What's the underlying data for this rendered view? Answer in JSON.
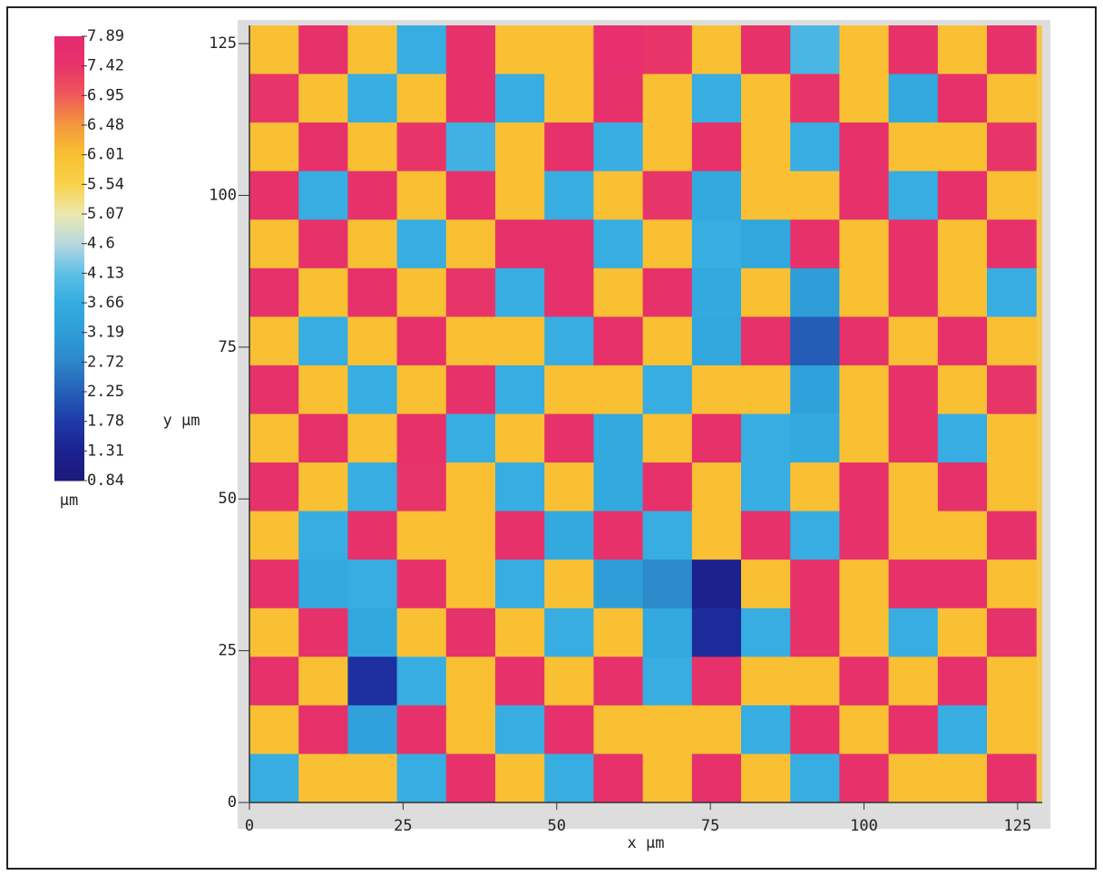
{
  "chart_data": {
    "type": "heatmap",
    "x_label": "x µm",
    "y_label": "y µm",
    "colorbar_unit": "µm",
    "xlim": [
      0,
      129
    ],
    "ylim": [
      0,
      128
    ],
    "xticks": [
      0,
      25,
      50,
      75,
      100,
      125
    ],
    "yticks": [
      0,
      25,
      50,
      75,
      100,
      125
    ],
    "x": [
      4,
      12,
      20,
      28,
      36,
      44,
      52,
      60,
      68,
      76,
      84,
      92,
      100,
      108,
      116,
      124
    ],
    "y": [
      124,
      116,
      108,
      100,
      92,
      84,
      76,
      68,
      60,
      52,
      44,
      36,
      28,
      20,
      12,
      4
    ],
    "z": [
      [
        6.0,
        7.5,
        6.0,
        3.7,
        7.5,
        6.0,
        6.0,
        7.6,
        7.4,
        6.0,
        7.5,
        3.9,
        6.0,
        7.5,
        6.0,
        7.5
      ],
      [
        7.4,
        6.0,
        3.7,
        6.0,
        7.5,
        3.7,
        6.0,
        7.5,
        6.0,
        3.7,
        6.0,
        7.4,
        6.0,
        3.6,
        7.5,
        6.0
      ],
      [
        6.0,
        7.5,
        6.0,
        7.4,
        3.8,
        6.0,
        7.5,
        3.7,
        6.0,
        7.5,
        6.0,
        3.7,
        7.5,
        6.0,
        6.0,
        7.4
      ],
      [
        7.5,
        3.7,
        7.5,
        6.0,
        7.5,
        6.0,
        3.7,
        6.0,
        7.4,
        3.6,
        6.0,
        6.0,
        7.5,
        3.7,
        7.5,
        6.0
      ],
      [
        6.0,
        7.5,
        6.0,
        3.7,
        6.0,
        7.5,
        7.5,
        3.7,
        6.0,
        3.7,
        3.5,
        7.5,
        6.0,
        7.5,
        6.0,
        7.5
      ],
      [
        7.5,
        6.0,
        7.5,
        6.0,
        7.4,
        3.7,
        7.5,
        6.0,
        7.5,
        3.6,
        6.0,
        3.2,
        6.0,
        7.5,
        6.0,
        3.7
      ],
      [
        6.0,
        3.7,
        6.0,
        7.5,
        6.0,
        6.0,
        3.7,
        7.5,
        6.0,
        3.5,
        7.5,
        2.2,
        7.5,
        6.0,
        7.5,
        6.0
      ],
      [
        7.5,
        6.0,
        3.7,
        6.0,
        7.5,
        3.7,
        6.0,
        6.0,
        3.7,
        6.0,
        6.0,
        3.3,
        6.0,
        7.5,
        6.0,
        7.4
      ],
      [
        6.0,
        7.5,
        6.0,
        7.5,
        3.7,
        6.0,
        7.5,
        3.6,
        6.0,
        7.5,
        3.7,
        3.6,
        6.0,
        7.5,
        3.7,
        6.0
      ],
      [
        7.5,
        6.0,
        3.7,
        7.4,
        6.0,
        3.7,
        6.0,
        3.6,
        7.5,
        6.0,
        3.7,
        6.0,
        7.5,
        6.0,
        7.5,
        6.0
      ],
      [
        6.0,
        3.7,
        7.5,
        6.0,
        6.0,
        7.5,
        3.6,
        7.5,
        3.7,
        6.0,
        7.5,
        3.7,
        7.5,
        6.0,
        6.0,
        7.5
      ],
      [
        7.5,
        3.6,
        3.7,
        7.5,
        6.0,
        3.7,
        6.0,
        3.2,
        2.8,
        1.3,
        6.0,
        7.5,
        6.0,
        7.5,
        7.5,
        6.0
      ],
      [
        6.0,
        7.5,
        3.5,
        6.0,
        7.5,
        6.0,
        3.7,
        6.0,
        3.6,
        1.5,
        3.7,
        7.5,
        6.0,
        3.7,
        6.0,
        7.5
      ],
      [
        7.5,
        6.0,
        1.6,
        3.7,
        6.0,
        7.5,
        6.0,
        7.5,
        3.7,
        7.5,
        6.0,
        6.0,
        7.5,
        6.0,
        7.5,
        6.0
      ],
      [
        6.0,
        7.5,
        3.3,
        7.5,
        6.0,
        3.7,
        7.5,
        6.0,
        6.0,
        6.0,
        3.7,
        7.5,
        6.0,
        7.5,
        3.7,
        6.0
      ],
      [
        3.7,
        6.0,
        6.0,
        3.7,
        7.5,
        6.0,
        3.7,
        7.5,
        6.0,
        7.5,
        6.0,
        3.7,
        7.5,
        6.0,
        6.0,
        7.5
      ]
    ],
    "cticks": [
      7.89,
      7.42,
      6.95,
      6.48,
      6.01,
      5.54,
      5.07,
      4.6,
      4.13,
      3.66,
      3.19,
      2.72,
      2.25,
      1.78,
      1.31,
      0.84
    ],
    "colormap": [
      "#e52a72",
      "#e8336a",
      "#ef5a5a",
      "#f39a3c",
      "#f9c032",
      "#f8d24a",
      "#ece8b0",
      "#b8d8e0",
      "#5ec0e6",
      "#33abe0",
      "#2f9ed8",
      "#2d86c8",
      "#2560b8",
      "#1f3aa8",
      "#1c2190",
      "#1a1a7a"
    ]
  }
}
